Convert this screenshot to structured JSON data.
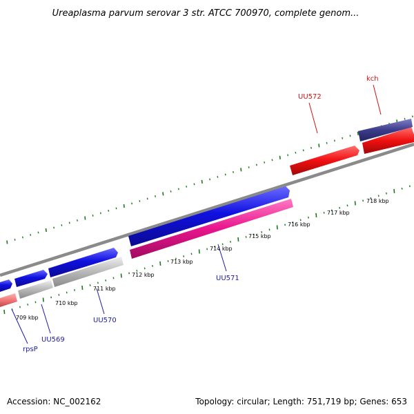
{
  "header": {
    "title": "Ureaplasma parvum serovar 3 str. ATCC 700970, complete genom..."
  },
  "footer": {
    "accession": "Accession: NC_002162",
    "summary": "Topology: circular; Length: 751,719 bp; Genes: 653"
  },
  "scale": {
    "tick_labels": [
      "709 kbp",
      "710 kbp",
      "711 kbp",
      "712 kbp",
      "713 kbp",
      "714 kbp",
      "715 kbp",
      "716 kbp",
      "717 kbp",
      "718 kbp"
    ]
  },
  "gene_labels": [
    {
      "id": "rpsP",
      "text": "rpsP",
      "color": "#1a1aa8"
    },
    {
      "id": "uu569",
      "text": "UU569",
      "color": "#1a1aa8"
    },
    {
      "id": "uu570",
      "text": "UU570",
      "color": "#1a1aa8"
    },
    {
      "id": "uu571",
      "text": "UU571",
      "color": "#1a1aa8"
    },
    {
      "id": "uu572",
      "text": "UU572",
      "color": "#d01010"
    },
    {
      "id": "kch",
      "text": "kch",
      "color": "#d01010"
    }
  ],
  "colors": {
    "forward_cds": "#1010d0",
    "forward_gene_bar": "#b4b4b4",
    "pseudo_pink": "#e8158c",
    "reverse_red": "#f01010",
    "reverse_red_light": "#f07878",
    "kch_purple": "#3c3c8c",
    "backbone": "#8a8a8a",
    "tick_green": "#1a7a1a"
  }
}
